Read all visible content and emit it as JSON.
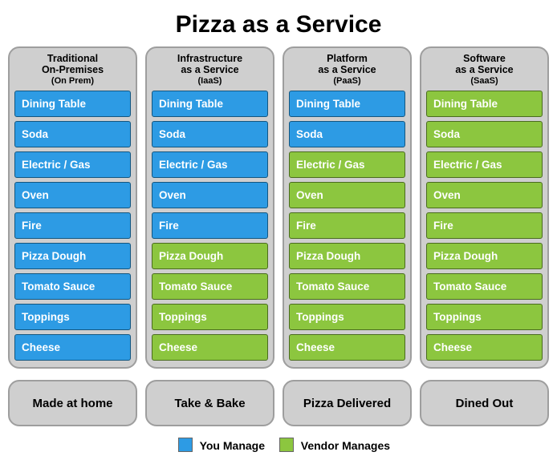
{
  "title": "Pizza as a Service",
  "colors": {
    "you_manage": "#2d9be4",
    "you_manage_border": "#14567f",
    "vendor_manages": "#8cc63f",
    "vendor_manages_border": "#4a6b1f",
    "column_bg": "#cfcfcf",
    "column_border": "#9e9e9e",
    "text_light": "#ffffff"
  },
  "layers": [
    "Dining Table",
    "Soda",
    "Electric / Gas",
    "Oven",
    "Fire",
    "Pizza Dough",
    "Tomato Sauce",
    "Toppings",
    "Cheese"
  ],
  "columns": [
    {
      "title_line1": "Traditional",
      "title_line2": "On-Premises",
      "subtitle": "(On Prem)",
      "footer": "Made at home",
      "ownership": [
        "you",
        "you",
        "you",
        "you",
        "you",
        "you",
        "you",
        "you",
        "you"
      ]
    },
    {
      "title_line1": "Infrastructure",
      "title_line2": "as a Service",
      "subtitle": "(IaaS)",
      "footer": "Take & Bake",
      "ownership": [
        "you",
        "you",
        "you",
        "you",
        "you",
        "vendor",
        "vendor",
        "vendor",
        "vendor"
      ]
    },
    {
      "title_line1": "Platform",
      "title_line2": "as a Service",
      "subtitle": "(PaaS)",
      "footer": "Pizza Delivered",
      "ownership": [
        "you",
        "you",
        "vendor",
        "vendor",
        "vendor",
        "vendor",
        "vendor",
        "vendor",
        "vendor"
      ]
    },
    {
      "title_line1": "Software",
      "title_line2": "as a Service",
      "subtitle": "(SaaS)",
      "footer": "Dined Out",
      "ownership": [
        "vendor",
        "vendor",
        "vendor",
        "vendor",
        "vendor",
        "vendor",
        "vendor",
        "vendor",
        "vendor"
      ]
    }
  ],
  "legend": {
    "you_label": "You Manage",
    "vendor_label": "Vendor Manages"
  }
}
